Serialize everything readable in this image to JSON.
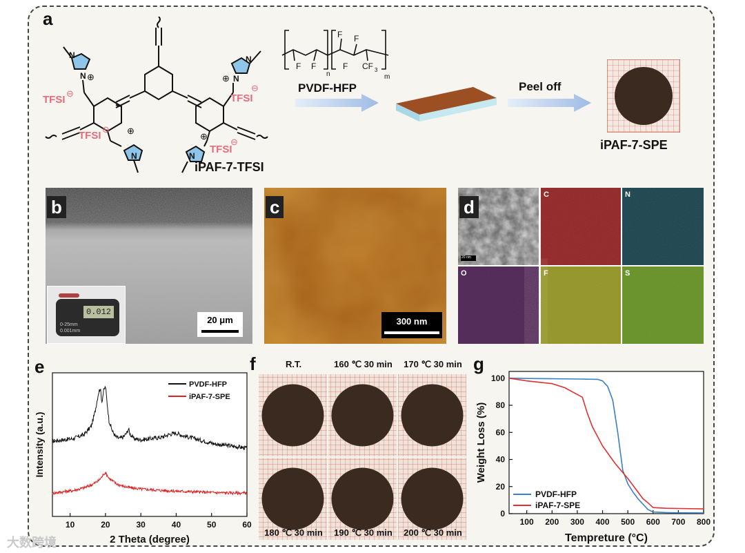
{
  "figure": {
    "panel_labels": {
      "a": "a",
      "b": "b",
      "c": "c",
      "d": "d",
      "e": "e",
      "f": "f",
      "g": "g"
    },
    "watermark": "大数跨境"
  },
  "panel_a": {
    "anion_label": "TFSI",
    "charge_minus": "⊖",
    "charge_plus": "⊕",
    "compound_name": "iPAF-7-TFSI",
    "polymer_name": "PVDF-HFP",
    "fluorine": "F",
    "cf3": "CF",
    "cf3_sub": "3",
    "sub_n": "n",
    "sub_m": "m",
    "step_label": "Peel off",
    "product_name": "iPAF-7-SPE",
    "colors": {
      "arrow": "#a9c2e6",
      "film_top": "#9c4f22",
      "film_base": "#bfe3ee",
      "disk": "#3b2a20",
      "grid": "#d9826a",
      "pink": "#e96a7a",
      "ring": "#8ec5e8"
    }
  },
  "panel_b": {
    "scale_bar": "20 μm",
    "caliper_readings": [
      "0-25mm",
      "0.001mm"
    ],
    "display_value": "0.012"
  },
  "panel_c": {
    "scale_bar": "300 nm"
  },
  "panel_d": {
    "sem_scale": "20 nm",
    "maps": [
      {
        "label": "C",
        "color": "#8b1a1a"
      },
      {
        "label": "N",
        "color": "#0f3a44"
      },
      {
        "label": "O",
        "color": "#4a1f4f"
      },
      {
        "label": "F",
        "color": "#8d8d1c"
      },
      {
        "label": "S",
        "color": "#5d8a1a"
      }
    ]
  },
  "panel_f": {
    "conditions": [
      "R.T.",
      "160 ℃ 30 min",
      "170 ℃ 30 min",
      "180 ℃ 30 min",
      "190 ℃ 30 min",
      "200 ℃ 30 min"
    ]
  },
  "chart_data": [
    {
      "id": "e",
      "type": "line",
      "xlabel": "2 Theta (degree)",
      "ylabel": "Intensity (a.u.)",
      "xlim": [
        5,
        60
      ],
      "xticks": [
        10,
        20,
        30,
        40,
        50,
        60
      ],
      "legend": "top-right",
      "series": [
        {
          "name": "PVDF-HFP",
          "color": "#111111",
          "x": [
            5,
            8,
            11,
            14,
            16,
            17,
            18,
            18.5,
            19,
            19.5,
            20,
            20.5,
            21,
            22,
            23,
            24,
            25,
            26,
            26.5,
            27,
            28,
            30,
            33,
            36,
            38,
            40,
            42,
            45,
            48,
            51,
            54,
            57,
            60
          ],
          "y": [
            55,
            56,
            57,
            60,
            66,
            76,
            90,
            94,
            84,
            92,
            95,
            82,
            70,
            62,
            58,
            57,
            58,
            61,
            64,
            60,
            57,
            56,
            57,
            58,
            60,
            61,
            59,
            57,
            55,
            53,
            52,
            51,
            50
          ]
        },
        {
          "name": "iPAF-7-SPE",
          "color": "#e02020",
          "x": [
            5,
            8,
            11,
            14,
            16,
            18,
            19,
            19.5,
            20,
            20.5,
            21,
            22,
            23,
            25,
            27,
            30,
            33,
            36,
            40,
            45,
            50,
            55,
            60
          ],
          "y": [
            17,
            18,
            19,
            21,
            23,
            26,
            29,
            31,
            32,
            30,
            28,
            26,
            24,
            22,
            21,
            20,
            19.5,
            19,
            18.5,
            18,
            17.5,
            17.2,
            17
          ]
        }
      ]
    },
    {
      "id": "g",
      "type": "line",
      "xlabel": "Tempreture (°C)",
      "ylabel": "Weight Loss (%)",
      "xlim": [
        30,
        800
      ],
      "ylim": [
        0,
        105
      ],
      "xticks": [
        100,
        200,
        300,
        400,
        500,
        600,
        700,
        800
      ],
      "yticks": [
        0,
        20,
        40,
        60,
        80,
        100
      ],
      "legend": "bottom-left",
      "series": [
        {
          "name": "PVDF-HFP",
          "color": "#3a7fc6",
          "x": [
            30,
            100,
            200,
            300,
            380,
            400,
            420,
            440,
            460,
            480,
            500,
            520,
            540,
            560,
            580,
            600,
            650,
            700,
            800
          ],
          "y": [
            100,
            99.8,
            99.6,
            99.4,
            99.2,
            98,
            94,
            84,
            60,
            32,
            22,
            16,
            11,
            7,
            3,
            1.2,
            0.8,
            0.6,
            0.5
          ]
        },
        {
          "name": "iPAF-7-SPE",
          "color": "#e03030",
          "x": [
            30,
            100,
            200,
            250,
            300,
            320,
            340,
            360,
            400,
            450,
            500,
            540,
            560,
            580,
            600,
            650,
            700,
            800
          ],
          "y": [
            100,
            98,
            96,
            93,
            88,
            86,
            74,
            64,
            50,
            37,
            26,
            16,
            11,
            8,
            4.5,
            4,
            3.8,
            3.5
          ]
        }
      ]
    }
  ]
}
